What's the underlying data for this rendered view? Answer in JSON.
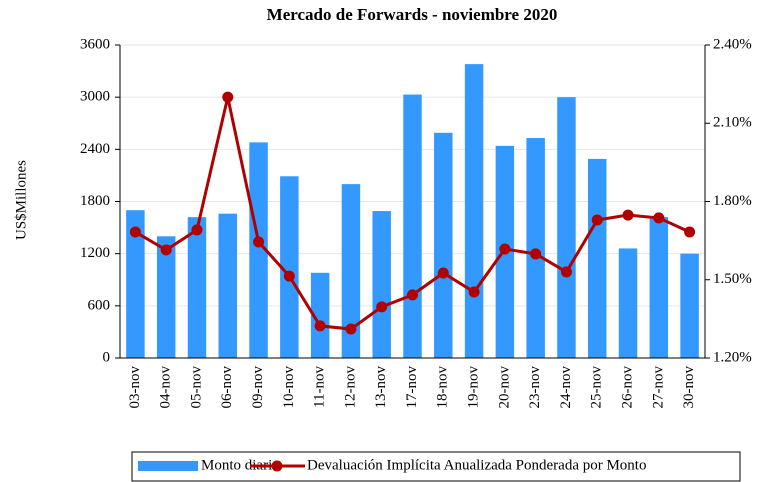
{
  "chart_data": {
    "type": "bar_line",
    "title": "Mercado de Forwards - noviembre 2020",
    "y_label": "US$Millones",
    "categories": [
      "03-nov",
      "04-nov",
      "05-nov",
      "06-nov",
      "09-nov",
      "10-nov",
      "11-nov",
      "12-nov",
      "13-nov",
      "17-nov",
      "18-nov",
      "19-nov",
      "20-nov",
      "23-nov",
      "24-nov",
      "25-nov",
      "26-nov",
      "27-nov",
      "30-nov"
    ],
    "series": [
      {
        "name": "Monto diario",
        "type": "bar",
        "color": "#3399ff",
        "values": [
          1700,
          1400,
          1620,
          1660,
          2480,
          2090,
          980,
          2000,
          1690,
          3030,
          2590,
          3380,
          2440,
          2530,
          3000,
          2290,
          1260,
          1620,
          1200
        ]
      },
      {
        "name": "Devaluación Implícita Anualizada Ponderada por Monto",
        "type": "line",
        "axis": "y2",
        "color": "#b00000",
        "values": [
          1.683,
          1.614,
          1.691,
          2.2,
          1.645,
          1.514,
          1.323,
          1.311,
          1.396,
          1.442,
          1.526,
          1.453,
          1.618,
          1.599,
          1.53,
          1.729,
          1.748,
          1.737,
          1.683
        ]
      }
    ],
    "ylim": [
      0,
      3600
    ],
    "yticks": [
      0,
      600,
      1200,
      1800,
      2400,
      3000,
      3600
    ],
    "y2lim": [
      1.2,
      2.4
    ],
    "y2ticks": [
      {
        "value": 1.2,
        "label": "1.20%"
      },
      {
        "value": 1.5,
        "label": "1.50%"
      },
      {
        "value": 1.8,
        "label": "1.80%"
      },
      {
        "value": 2.1,
        "label": "2.10%"
      },
      {
        "value": 2.4,
        "label": "2.40%"
      }
    ],
    "grid": true,
    "legend": "bottom"
  }
}
